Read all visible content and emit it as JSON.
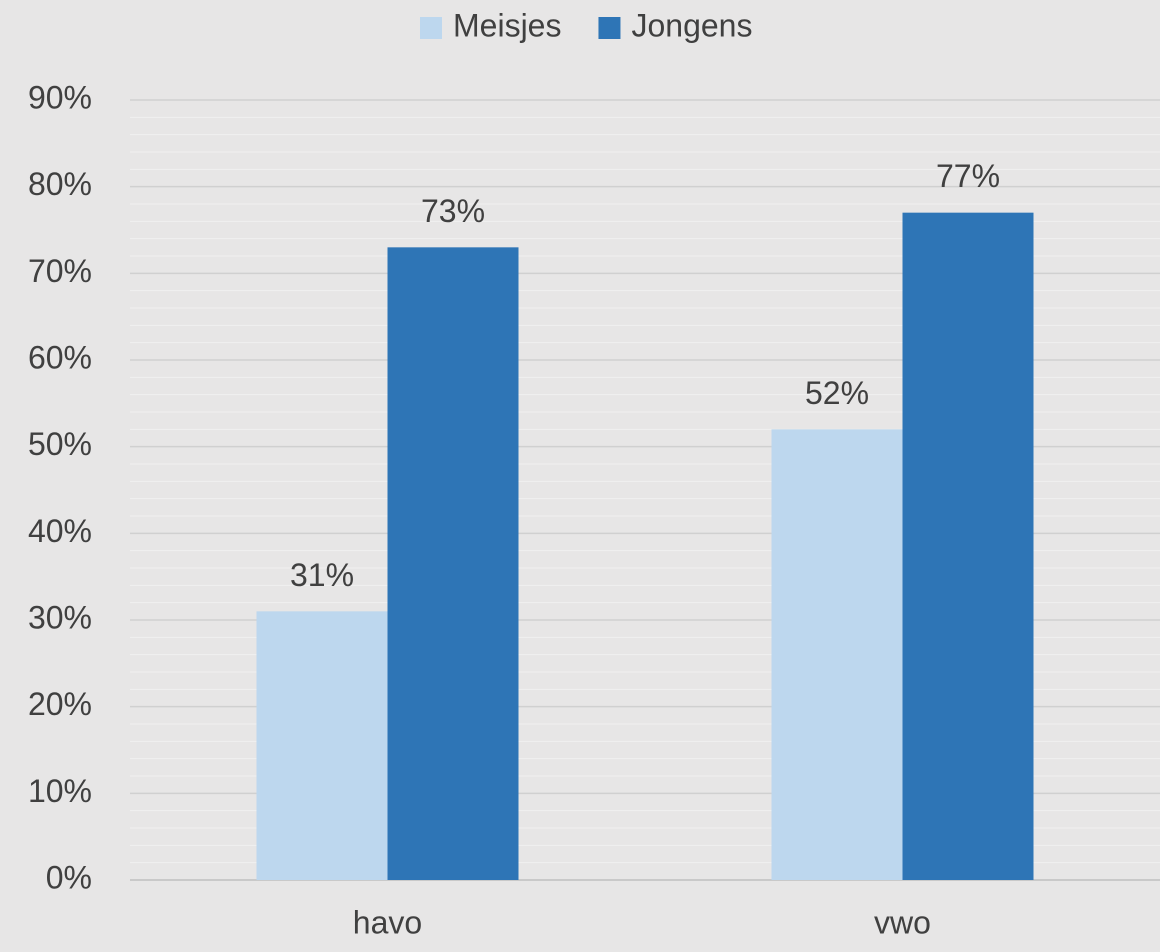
{
  "chart_data": {
    "type": "bar",
    "categories": [
      "havo",
      "vwo"
    ],
    "series": [
      {
        "name": "Meisjes",
        "color": "#bdd7ee",
        "values": [
          31,
          52
        ],
        "value_labels": [
          "31%",
          "52%"
        ]
      },
      {
        "name": "Jongens",
        "color": "#2e75b6",
        "values": [
          73,
          77
        ],
        "value_labels": [
          "73%",
          "77%"
        ]
      }
    ],
    "ylim": [
      0,
      90
    ],
    "yticks": [
      {
        "value": 0,
        "label": "0%"
      },
      {
        "value": 10,
        "label": "10%"
      },
      {
        "value": 20,
        "label": "20%"
      },
      {
        "value": 30,
        "label": "30%"
      },
      {
        "value": 40,
        "label": "40%"
      },
      {
        "value": 50,
        "label": "50%"
      },
      {
        "value": 60,
        "label": "60%"
      },
      {
        "value": 70,
        "label": "70%"
      },
      {
        "value": 80,
        "label": "80%"
      },
      {
        "value": 90,
        "label": "90%"
      }
    ],
    "minor_yticks": [
      2,
      4,
      6,
      8,
      12,
      14,
      16,
      18,
      22,
      24,
      26,
      28,
      32,
      34,
      36,
      38,
      42,
      44,
      46,
      48,
      52,
      54,
      56,
      58,
      62,
      64,
      66,
      68,
      72,
      74,
      76,
      78,
      82,
      84,
      86,
      88
    ],
    "grid": true,
    "legend": "top"
  }
}
